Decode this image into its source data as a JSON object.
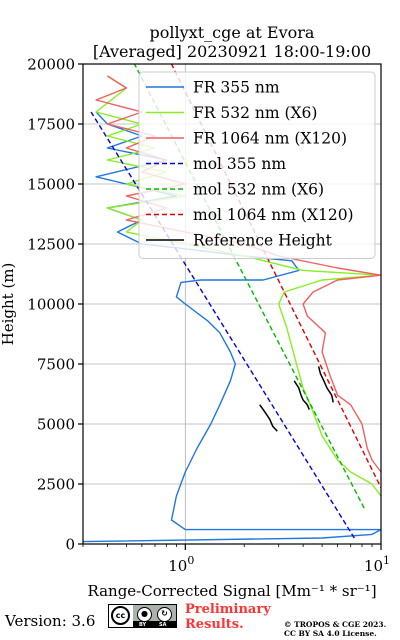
{
  "chart_data": {
    "type": "line",
    "title": "pollyxt_cge at Evora",
    "subtitle": "[Averaged] 20230921 18:00-19:00",
    "xlabel": "Range-Corrected Signal [Mm⁻¹ * sr⁻¹]",
    "ylabel": "Height (m)",
    "xscale": "log",
    "xlim": [
      0.3,
      10
    ],
    "ylim": [
      0,
      20000
    ],
    "x_ticks": [
      {
        "value": 1,
        "label": "10^0"
      },
      {
        "value": 10,
        "label": "10^1"
      }
    ],
    "y_ticks": [
      0,
      2500,
      5000,
      7500,
      10000,
      12500,
      15000,
      17500,
      20000
    ],
    "grid": true,
    "legend_position": "top-right",
    "series": [
      {
        "name": "FR 355 nm",
        "color": "#1f77e0",
        "style": "solid",
        "points": [
          [
            0.3,
            100
          ],
          [
            5,
            250
          ],
          [
            9,
            400
          ],
          [
            10,
            600
          ],
          [
            1.0,
            600
          ],
          [
            0.85,
            1000
          ],
          [
            0.9,
            2000
          ],
          [
            1.0,
            3000
          ],
          [
            1.15,
            4000
          ],
          [
            1.35,
            5000
          ],
          [
            1.5,
            5800
          ],
          [
            1.7,
            6800
          ],
          [
            1.8,
            7500
          ],
          [
            1.7,
            8000
          ],
          [
            1.5,
            8800
          ],
          [
            1.3,
            9300
          ],
          [
            1.0,
            10000
          ],
          [
            0.9,
            10300
          ],
          [
            0.95,
            10900
          ],
          [
            1.2,
            11000
          ],
          [
            2.5,
            11000
          ],
          [
            3.8,
            11400
          ],
          [
            3.5,
            11800
          ],
          [
            2.0,
            12000
          ],
          [
            1.0,
            12300
          ],
          [
            0.6,
            12500
          ],
          [
            0.45,
            13000
          ],
          [
            0.6,
            13500
          ],
          [
            0.4,
            14000
          ],
          [
            0.9,
            14500
          ],
          [
            0.5,
            15000
          ],
          [
            0.35,
            15300
          ],
          [
            0.8,
            16000
          ],
          [
            0.4,
            16500
          ],
          [
            0.6,
            17000
          ],
          [
            0.4,
            17500
          ],
          [
            0.35,
            18000
          ]
        ]
      },
      {
        "name": "FR 532 nm (X6)",
        "color": "#88ee22",
        "style": "solid",
        "points": [
          [
            10,
            2000
          ],
          [
            9,
            2500
          ],
          [
            7,
            3000
          ],
          [
            6,
            3500
          ],
          [
            5,
            4500
          ],
          [
            4.5,
            5500
          ],
          [
            4,
            6500
          ],
          [
            3.7,
            7500
          ],
          [
            3.3,
            9000
          ],
          [
            3,
            10000
          ],
          [
            3.2,
            10500
          ],
          [
            5,
            11000
          ],
          [
            10,
            11200
          ],
          [
            4,
            11400
          ],
          [
            2,
            12000
          ],
          [
            1,
            12500
          ],
          [
            0.5,
            13000
          ],
          [
            0.6,
            13500
          ],
          [
            0.4,
            14000
          ],
          [
            1,
            14500
          ],
          [
            0.5,
            15000
          ],
          [
            0.8,
            15500
          ],
          [
            0.4,
            16000
          ],
          [
            0.7,
            16500
          ],
          [
            0.4,
            17000
          ],
          [
            0.6,
            17500
          ],
          [
            0.35,
            18000
          ],
          [
            0.5,
            19000
          ],
          [
            0.4,
            19500
          ]
        ]
      },
      {
        "name": "FR 1064 nm (X120)",
        "color": "#f06060",
        "style": "solid",
        "points": [
          [
            10,
            3000
          ],
          [
            9,
            3500
          ],
          [
            8.5,
            4000
          ],
          [
            8,
            5000
          ],
          [
            7,
            5800
          ],
          [
            6,
            6200
          ],
          [
            5.5,
            7000
          ],
          [
            5,
            8000
          ],
          [
            5.2,
            8800
          ],
          [
            4.2,
            9500
          ],
          [
            4,
            10000
          ],
          [
            4.5,
            10500
          ],
          [
            6,
            11000
          ],
          [
            10,
            11200
          ],
          [
            6,
            11500
          ],
          [
            3,
            12000
          ],
          [
            2,
            12500
          ],
          [
            1,
            13000
          ],
          [
            0.5,
            13500
          ],
          [
            0.8,
            14000
          ],
          [
            0.5,
            14500
          ],
          [
            1,
            15000
          ],
          [
            0.6,
            15500
          ],
          [
            0.8,
            16000
          ],
          [
            0.5,
            16500
          ],
          [
            0.7,
            17000
          ],
          [
            0.4,
            17500
          ],
          [
            0.6,
            18000
          ],
          [
            0.35,
            18500
          ],
          [
            0.5,
            19000
          ],
          [
            0.4,
            19500
          ]
        ]
      },
      {
        "name": "mol 355 nm",
        "color": "#0000dd",
        "style": "dashed",
        "points": [
          [
            7.3,
            250
          ],
          [
            0.33,
            18000
          ]
        ]
      },
      {
        "name": "mol 532 nm (X6)",
        "color": "#00bb00",
        "style": "dashed",
        "points": [
          [
            8.2,
            1500
          ],
          [
            0.55,
            20000
          ]
        ]
      },
      {
        "name": "mol 1064 nm (X120)",
        "color": "#dd0000",
        "style": "dashed",
        "points": [
          [
            10.2,
            2200
          ],
          [
            0.85,
            20000
          ]
        ]
      },
      {
        "name": "Reference Height",
        "color": "#000000",
        "style": "solid",
        "segments": [
          [
            [
              2.4,
              5800
            ],
            [
              2.5,
              5600
            ],
            [
              2.6,
              5400
            ],
            [
              2.7,
              5200
            ],
            [
              2.8,
              4900
            ],
            [
              2.95,
              4700
            ]
          ],
          [
            [
              3.6,
              6800
            ],
            [
              3.8,
              6500
            ],
            [
              3.9,
              6200
            ],
            [
              4.0,
              6000
            ],
            [
              4.2,
              5800
            ],
            [
              4.3,
              5600
            ]
          ],
          [
            [
              4.8,
              7400
            ],
            [
              4.9,
              7100
            ],
            [
              5.1,
              6800
            ],
            [
              5.3,
              6500
            ],
            [
              5.6,
              6200
            ],
            [
              5.7,
              5900
            ]
          ]
        ]
      }
    ]
  },
  "footer": {
    "version_label": "Version: 3.6",
    "cc_symbol": "cc",
    "preliminary_line1": "Preliminary",
    "preliminary_line2": "Results.",
    "copyright_line1": "© TROPOS & CGE 2023.",
    "copyright_line2": "CC BY SA 4.0 License."
  }
}
